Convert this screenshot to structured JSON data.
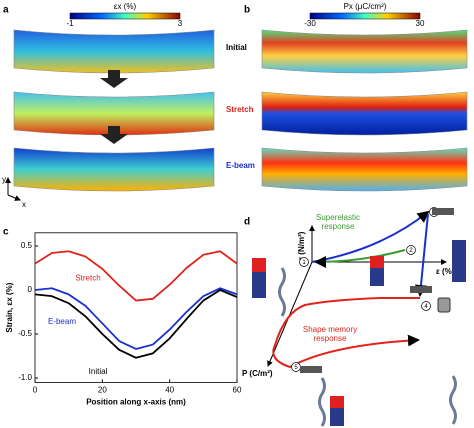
{
  "panel_labels": [
    "a",
    "b",
    "c",
    "d"
  ],
  "panel_a": {
    "colorbar_label": "εx (%)",
    "colorbar_min": "-1",
    "colorbar_max": "3",
    "states": [
      "Initial",
      "Stretch",
      "E-beam"
    ],
    "axis_y": "y",
    "axis_x": "x"
  },
  "panel_b": {
    "colorbar_label": "Px (μC/cm²)",
    "colorbar_min": "-30",
    "colorbar_max": "30"
  },
  "chart_data": {
    "type": "line",
    "xlabel": "Position along x-axis (nm)",
    "ylabel": "Strain, εx (%)",
    "x": [
      0,
      5,
      10,
      15,
      20,
      25,
      30,
      35,
      40,
      45,
      50,
      55,
      60
    ],
    "series": [
      {
        "name": "Stretch",
        "color": "#e0241b",
        "values": [
          0.3,
          0.42,
          0.44,
          0.38,
          0.24,
          0.05,
          -0.12,
          -0.1,
          0.06,
          0.25,
          0.4,
          0.44,
          0.3
        ]
      },
      {
        "name": "E-beam",
        "color": "#1a2fd0",
        "values": [
          0.0,
          0.02,
          -0.05,
          -0.18,
          -0.38,
          -0.58,
          -0.67,
          -0.62,
          -0.45,
          -0.25,
          -0.07,
          0.02,
          -0.05
        ]
      },
      {
        "name": "Initial",
        "color": "#000000",
        "values": [
          -0.05,
          -0.07,
          -0.15,
          -0.3,
          -0.5,
          -0.68,
          -0.77,
          -0.72,
          -0.55,
          -0.33,
          -0.12,
          0.0,
          -0.08
        ]
      }
    ],
    "xlim": [
      0,
      60
    ],
    "xticks": [
      0,
      20,
      40,
      60
    ],
    "ylim": [
      -1.05,
      0.65
    ],
    "yticks": [
      0.5,
      0,
      -0.5,
      {
        "value": -1,
        "label": "-1.0"
      }
    ]
  },
  "panel_d": {
    "y_axis": "σ (N/m²)",
    "x_axis": "ε (%)",
    "p_axis": "P (C/m²)",
    "superelastic": [
      "Superelastic",
      "response"
    ],
    "shape_memory": [
      "Shape memory",
      "response"
    ],
    "points": [
      "1",
      "2",
      "3",
      "4",
      "5"
    ]
  }
}
